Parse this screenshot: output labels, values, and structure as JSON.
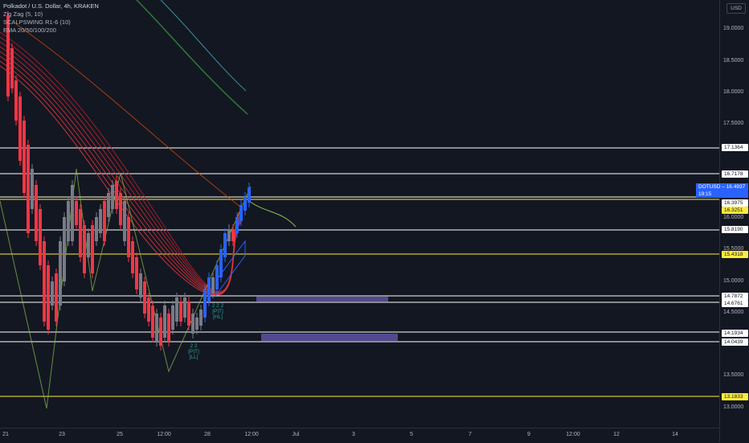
{
  "legend": {
    "title": "Polkadot / U.S. Dollar, 4h, KRAKEN",
    "indicators": [
      "Zig Zag (5, 10)",
      "SCALPSWING R1-6 (10)",
      "EMA 20/50/100/200"
    ]
  },
  "price_axis": {
    "currency": "USD",
    "ticks": [
      "19.0000",
      "18.5000",
      "18.0000",
      "17.5000",
      "16.0000",
      "15.5000",
      "15.0000",
      "14.5000",
      "13.5000",
      "13.0000"
    ],
    "levels": [
      {
        "label": "17.1364",
        "color": "#ffffff"
      },
      {
        "label": "16.7178",
        "color": "#ffffff"
      },
      {
        "label": "16.3975",
        "color": "#ffffff"
      },
      {
        "label": "16.3251",
        "color": "#ffeb3b"
      },
      {
        "label": "15.8190",
        "color": "#ffffff"
      },
      {
        "label": "15.4318",
        "color": "#ffeb3b"
      },
      {
        "label": "14.7872",
        "color": "#ffffff"
      },
      {
        "label": "14.6761",
        "color": "#ffffff"
      },
      {
        "label": "14.1934",
        "color": "#ffffff"
      },
      {
        "label": "14.0439",
        "color": "#ffffff"
      },
      {
        "label": "13.1833",
        "color": "#ffeb3b"
      }
    ],
    "current": {
      "symbol": "DOTUSD",
      "price": "16.4937",
      "countdown": "19:15"
    }
  },
  "time_axis": {
    "labels": [
      "21",
      "23",
      "25",
      "12:00",
      "28",
      "12:00",
      "Jul",
      "3",
      "5",
      "7",
      "9",
      "12:00",
      "12",
      "14"
    ]
  },
  "markers": [
    {
      "text": "2 2 2\n[P|T]\n[HL]"
    },
    {
      "text": "2 2\n[P|T]\n[LL]"
    }
  ],
  "colors": {
    "background": "#131722",
    "bull": "#2962ff",
    "bear": "#f23645",
    "neutral": "#787b86",
    "level_white": "#ffffff",
    "level_yellow": "#ffeb3b",
    "zone": "#5b4f9a"
  }
}
